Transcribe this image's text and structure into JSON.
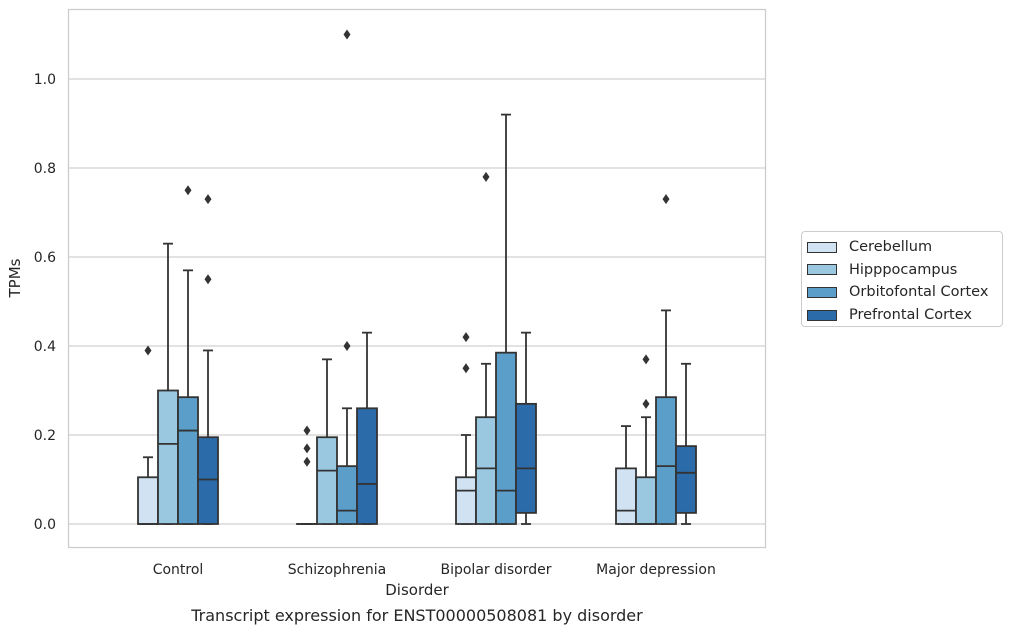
{
  "chart_data": {
    "type": "box",
    "xlabel": "Disorder",
    "ylabel": "TPMs",
    "caption": "Transcript expression for ENST00000508081 by disorder",
    "categories": [
      "Control",
      "Schizophrenia",
      "Bipolar disorder",
      "Major depression"
    ],
    "ylim": [
      -0.05,
      1.16
    ],
    "yticks": [
      "0.0",
      "0.2",
      "0.4",
      "0.6",
      "0.8",
      "1.0"
    ],
    "grid": true,
    "legend_position": "right",
    "series": [
      {
        "name": "Cerebellum",
        "color": "#d1e2f2",
        "boxes": [
          {
            "min": 0.0,
            "q1": 0.0,
            "median": 0.0,
            "q3": 0.105,
            "max": 0.15,
            "outliers": [
              0.39
            ]
          },
          {
            "min": 0.0,
            "q1": 0.0,
            "median": 0.0,
            "q3": 0.0,
            "max": 0.0,
            "outliers": [
              0.14,
              0.17,
              0.21
            ]
          },
          {
            "min": 0.0,
            "q1": 0.0,
            "median": 0.075,
            "q3": 0.105,
            "max": 0.2,
            "outliers": [
              0.35,
              0.42
            ]
          },
          {
            "min": 0.0,
            "q1": 0.0,
            "median": 0.03,
            "q3": 0.125,
            "max": 0.22,
            "outliers": []
          }
        ]
      },
      {
        "name": "Hipppocampus",
        "color": "#9ac8e0",
        "boxes": [
          {
            "min": 0.0,
            "q1": 0.0,
            "median": 0.18,
            "q3": 0.3,
            "max": 0.63,
            "outliers": []
          },
          {
            "min": 0.0,
            "q1": 0.0,
            "median": 0.12,
            "q3": 0.195,
            "max": 0.37,
            "outliers": []
          },
          {
            "min": 0.0,
            "q1": 0.0,
            "median": 0.125,
            "q3": 0.24,
            "max": 0.36,
            "outliers": [
              0.78
            ]
          },
          {
            "min": 0.0,
            "q1": 0.0,
            "median": 0.0,
            "q3": 0.105,
            "max": 0.24,
            "outliers": [
              0.27,
              0.37
            ]
          }
        ]
      },
      {
        "name": "Orbitofontal Cortex",
        "color": "#5a9ec9",
        "boxes": [
          {
            "min": 0.0,
            "q1": 0.0,
            "median": 0.21,
            "q3": 0.285,
            "max": 0.57,
            "outliers": [
              0.75
            ]
          },
          {
            "min": 0.0,
            "q1": 0.0,
            "median": 0.03,
            "q3": 0.13,
            "max": 0.26,
            "outliers": [
              0.4,
              1.1
            ]
          },
          {
            "min": 0.0,
            "q1": 0.0,
            "median": 0.075,
            "q3": 0.385,
            "max": 0.92,
            "outliers": []
          },
          {
            "min": 0.0,
            "q1": 0.0,
            "median": 0.13,
            "q3": 0.285,
            "max": 0.48,
            "outliers": [
              0.73
            ]
          }
        ]
      },
      {
        "name": "Prefrontal Cortex",
        "color": "#2b6ba9",
        "boxes": [
          {
            "min": 0.0,
            "q1": 0.0,
            "median": 0.1,
            "q3": 0.195,
            "max": 0.39,
            "outliers": [
              0.55,
              0.73
            ]
          },
          {
            "min": 0.0,
            "q1": 0.0,
            "median": 0.09,
            "q3": 0.26,
            "max": 0.43,
            "outliers": []
          },
          {
            "min": 0.0,
            "q1": 0.025,
            "median": 0.125,
            "q3": 0.27,
            "max": 0.43,
            "outliers": []
          },
          {
            "min": 0.0,
            "q1": 0.025,
            "median": 0.115,
            "q3": 0.175,
            "max": 0.36,
            "outliers": []
          }
        ]
      }
    ]
  }
}
